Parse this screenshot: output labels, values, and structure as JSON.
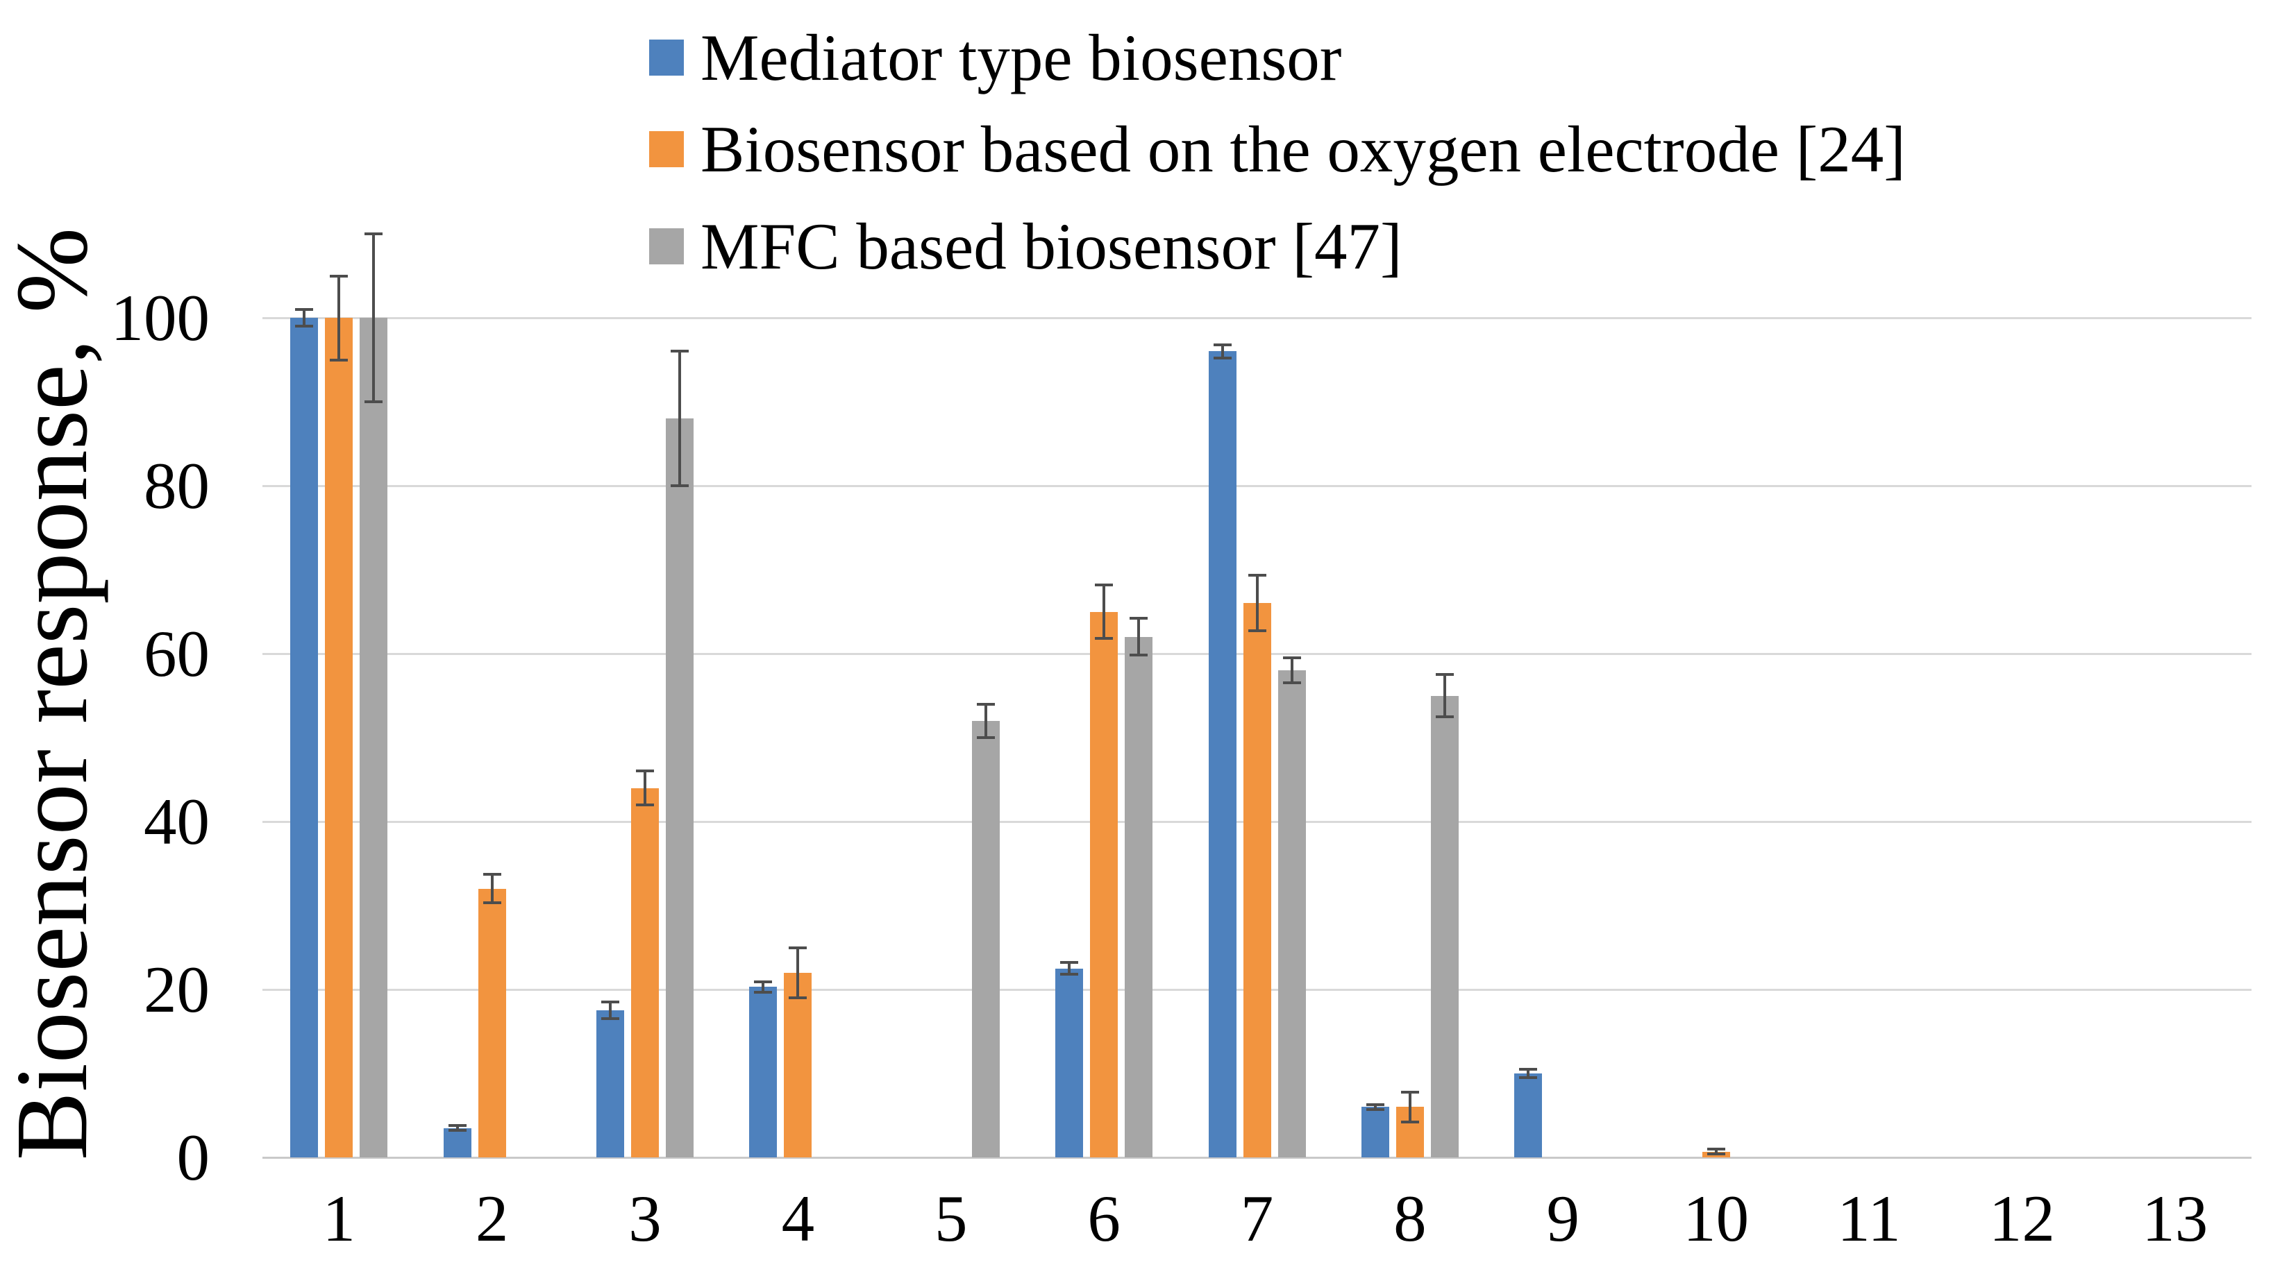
{
  "chart_data": {
    "type": "bar",
    "title": "",
    "xlabel": "",
    "ylabel": "Biosensor response, %",
    "categories": [
      "1",
      "2",
      "3",
      "4",
      "5",
      "6",
      "7",
      "8",
      "9",
      "10",
      "11",
      "12",
      "13"
    ],
    "yticks": [
      0,
      20,
      40,
      60,
      80,
      100
    ],
    "ylim": [
      0,
      100
    ],
    "grid": "horizontal-on",
    "legend_position": "top-left-inside",
    "series": [
      {
        "name": "Mediator type biosensor",
        "color": "#4E81BD",
        "values": [
          100,
          3.5,
          17.5,
          20.3,
          0,
          22.5,
          96,
          6,
          10,
          0,
          0,
          0,
          0
        ],
        "errors": [
          1,
          0.3,
          1,
          0.6,
          0,
          0.7,
          0.8,
          0.3,
          0.5,
          0,
          0,
          0,
          0
        ]
      },
      {
        "name": "Biosensor based on the oxygen electrode [24]",
        "color": "#F2943F",
        "values": [
          100,
          32,
          44,
          22,
          0,
          65,
          66,
          6,
          0,
          0.7,
          0,
          0,
          0
        ],
        "errors": [
          5,
          1.7,
          2,
          3,
          0,
          3.2,
          3.3,
          1.8,
          0,
          0.3,
          0,
          0,
          0
        ]
      },
      {
        "name": "MFC based biosensor [47]",
        "color": "#A6A6A6",
        "values": [
          100,
          0,
          88,
          0,
          52,
          62,
          58,
          55,
          0,
          0,
          0,
          0,
          0
        ],
        "errors": [
          10,
          0,
          8,
          0,
          2,
          2.2,
          1.5,
          2.5,
          0,
          0,
          0,
          0,
          0
        ]
      }
    ],
    "colors": {
      "error_bar": "#4D4D4D",
      "gridline": "#D9D9D9",
      "axis_line": "#C9C9C9",
      "text": "#000000",
      "background": "#FFFFFF"
    }
  }
}
